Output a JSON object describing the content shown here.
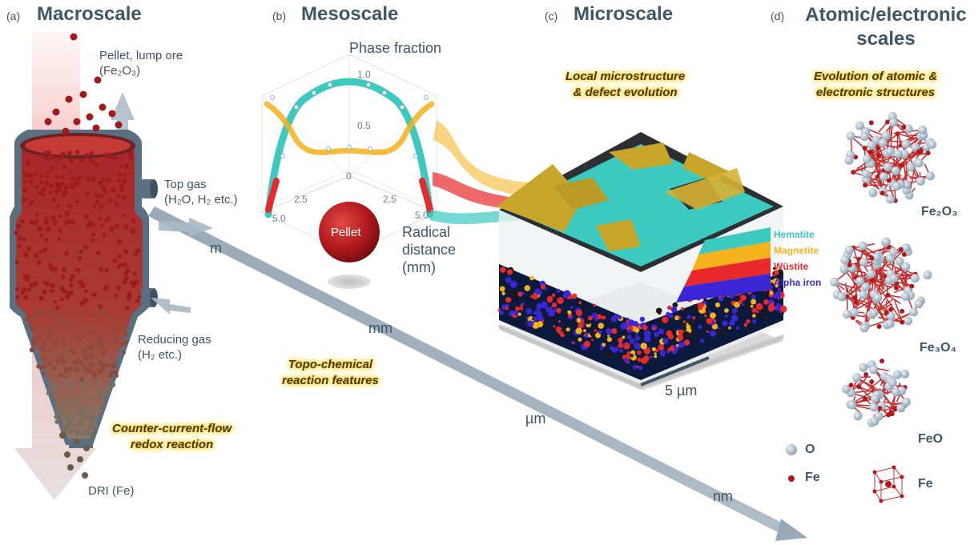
{
  "panels": {
    "a": {
      "letter": "(a)",
      "title": "Macroscale"
    },
    "b": {
      "letter": "(b)",
      "title": "Mesoscale"
    },
    "c": {
      "letter": "(c)",
      "title": "Microscale"
    },
    "d": {
      "letter": "(d)",
      "title_line1": "Atomic/electronic",
      "title_line2": "scales"
    }
  },
  "macro": {
    "pellet_line1": "Pellet, lump ore",
    "pellet_line2": "(Fe₂O₃)",
    "topgas_line1": "Top gas",
    "topgas_line2": "(H₂O, H₂ etc.)",
    "reducing_line1": "Reducing gas",
    "reducing_line2": "(H₂ etc.)",
    "dri": "DRI (Fe)",
    "note_line1": "Counter-current-flow",
    "note_line2": "redox reaction"
  },
  "meso": {
    "axis_title": "Phase fraction",
    "tick_top": "1.0",
    "tick_mid": "0.5",
    "tick_zero": "0",
    "tick_left_25": "2.5",
    "tick_left_50": "5.0",
    "tick_right_25": "2.5",
    "tick_right_50": "5.0",
    "pellet_label": "Pellet",
    "radial_line1": "Radical",
    "radial_line2": "distance",
    "radial_line3": "(mm)"
  },
  "micro": {
    "note_line1": "Local microstructure",
    "note_line2": "& defect evolution",
    "scalebar": "5 µm",
    "legend": [
      {
        "label": "Hematite",
        "color": "#3cc9c0"
      },
      {
        "label": "Magnetite",
        "color": "#f5b21a"
      },
      {
        "label": "Wüstite",
        "color": "#e8282b"
      },
      {
        "label": "Alpha iron",
        "color": "#3a26d6"
      }
    ]
  },
  "scales": {
    "m": "m",
    "mm": "mm",
    "um": "µm",
    "nm": "nm"
  },
  "topo": {
    "line1": "Topo-chemical",
    "line2": "reaction features"
  },
  "atomic": {
    "note_line1": "Evolution of atomic &",
    "note_line2": "electronic structures",
    "fe2o3": "Fe₂O₃",
    "fe3o4": "Fe₃O₄",
    "feo": "FeO",
    "fe": "Fe",
    "key_o": "O",
    "key_fe": "Fe"
  },
  "colors": {
    "hematite": "#3cc9c0",
    "magnetite": "#f5b21a",
    "wustite": "#e8282b",
    "alpha_iron": "#3a26d6",
    "pellet_red": "#b3191c",
    "o_atom": "#a9bccb",
    "fe_atom": "#b3191c",
    "furnace": "#5a6f80"
  }
}
